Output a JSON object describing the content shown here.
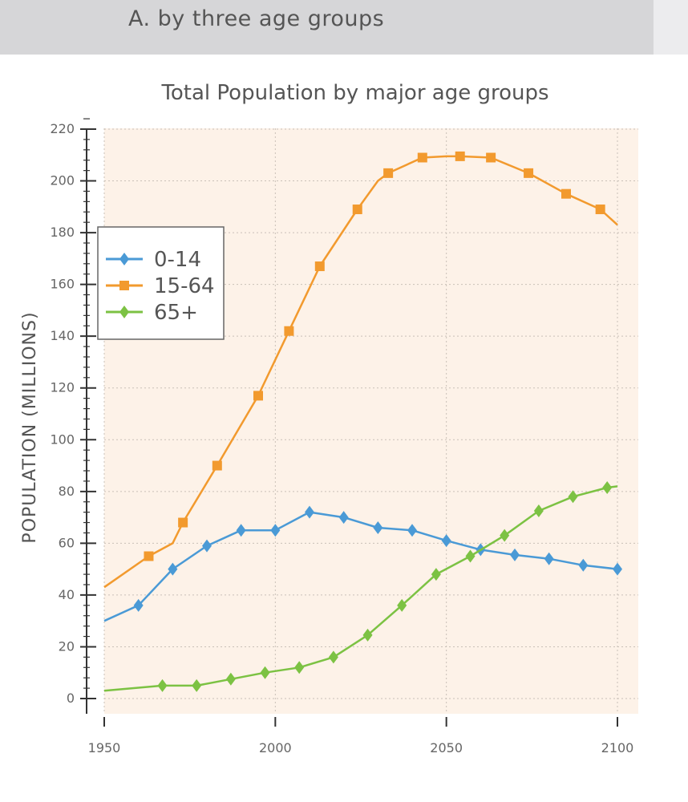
{
  "section": {
    "title": "A. by three age groups"
  },
  "colors": {
    "header_bg": "#d6d6d8",
    "plot_bg": "#fdf2e8",
    "grid": "#c9c0b7",
    "axis": "#333333"
  },
  "chart_data": {
    "type": "line",
    "title": "Total Population by major age groups",
    "xlabel": "",
    "ylabel": "POPULATION (MILLIONS)",
    "xlim": [
      1950,
      2105
    ],
    "ylim": [
      0,
      220
    ],
    "x_ticks": [
      1950,
      2000,
      2050,
      2100
    ],
    "y_ticks": [
      0,
      20,
      40,
      60,
      80,
      100,
      120,
      140,
      160,
      180,
      200,
      220
    ],
    "grid": true,
    "legend_position": "upper-left",
    "series": [
      {
        "name": "0-14",
        "color": "#4a9ad6",
        "marker": "diamond",
        "x": [
          1950,
          1960,
          1970,
          1980,
          1990,
          2000,
          2010,
          2020,
          2030,
          2040,
          2050,
          2060,
          2070,
          2080,
          2090,
          2100
        ],
        "y": [
          30,
          36,
          50,
          59,
          65,
          65,
          72,
          70,
          66,
          65,
          61,
          57.5,
          55.5,
          54,
          51.5,
          50
        ],
        "markers": [
          0,
          1,
          1,
          1,
          1,
          1,
          1,
          1,
          1,
          1,
          1,
          1,
          1,
          1,
          1,
          1
        ]
      },
      {
        "name": "15-64",
        "color": "#f29a2e",
        "marker": "square",
        "x": [
          1950,
          1963,
          1970,
          1973,
          1983,
          1995,
          2004,
          2013,
          2024,
          2030,
          2033,
          2043,
          2050,
          2054,
          2063,
          2074,
          2085,
          2095,
          2100
        ],
        "y": [
          43,
          55,
          60,
          68,
          90,
          117,
          142,
          167,
          189,
          200,
          203,
          209,
          209.5,
          209.5,
          209,
          203,
          195,
          189,
          183
        ],
        "markers": [
          0,
          1,
          0,
          1,
          1,
          1,
          1,
          1,
          1,
          0,
          1,
          1,
          0,
          1,
          1,
          1,
          1,
          1,
          0
        ]
      },
      {
        "name": "65+",
        "color": "#7cc243",
        "marker": "diamond",
        "x": [
          1950,
          1967,
          1977,
          1987,
          1997,
          2007,
          2017,
          2027,
          2037,
          2047,
          2057,
          2067,
          2077,
          2087,
          2097,
          2100
        ],
        "y": [
          3,
          5,
          5,
          7.5,
          10,
          12,
          16,
          24.5,
          36,
          48,
          55,
          63,
          72.5,
          78,
          81.5,
          82
        ],
        "markers": [
          0,
          1,
          1,
          1,
          1,
          1,
          1,
          1,
          1,
          1,
          1,
          1,
          1,
          1,
          1,
          0
        ]
      }
    ]
  }
}
